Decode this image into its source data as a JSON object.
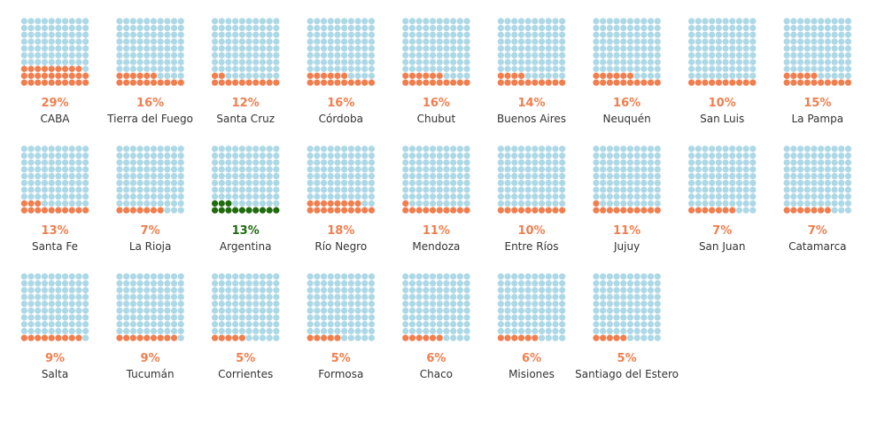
{
  "chart_data": {
    "type": "waffle",
    "title": "",
    "grid": "10x10 dots, 1 dot = 1%",
    "colors": {
      "empty": "#add8e6",
      "filled": "#f07e4e",
      "filled_highlight": "#1f6b0e",
      "label": "#f07e4e",
      "label_highlight": "#1f6b0e"
    },
    "items": [
      {
        "name": "CABA",
        "label": "29%",
        "value": 29,
        "highlight": false
      },
      {
        "name": "Tierra del Fuego",
        "label": "16%",
        "value": 16,
        "highlight": false
      },
      {
        "name": "Santa Cruz",
        "label": "12%",
        "value": 12,
        "highlight": false
      },
      {
        "name": "Córdoba",
        "label": "16%",
        "value": 16,
        "highlight": false
      },
      {
        "name": "Chubut",
        "label": "16%",
        "value": 16,
        "highlight": false
      },
      {
        "name": "Buenos Aires",
        "label": "14%",
        "value": 14,
        "highlight": false
      },
      {
        "name": "Neuquén",
        "label": "16%",
        "value": 16,
        "highlight": false
      },
      {
        "name": "San Luis",
        "label": "10%",
        "value": 10,
        "highlight": false
      },
      {
        "name": "La Pampa",
        "label": "15%",
        "value": 15,
        "highlight": false
      },
      {
        "name": "Santa Fe",
        "label": "13%",
        "value": 13,
        "highlight": false
      },
      {
        "name": "La Rioja",
        "label": "7%",
        "value": 7,
        "highlight": false
      },
      {
        "name": "Argentina",
        "label": "13%",
        "value": 13,
        "highlight": true
      },
      {
        "name": "Río Negro",
        "label": "18%",
        "value": 18,
        "highlight": false
      },
      {
        "name": "Mendoza",
        "label": "11%",
        "value": 11,
        "highlight": false
      },
      {
        "name": "Entre Ríos",
        "label": "10%",
        "value": 10,
        "highlight": false
      },
      {
        "name": "Jujuy",
        "label": "11%",
        "value": 11,
        "highlight": false
      },
      {
        "name": "San Juan",
        "label": "7%",
        "value": 7,
        "highlight": false
      },
      {
        "name": "Catamarca",
        "label": "7%",
        "value": 7,
        "highlight": false
      },
      {
        "name": "Salta",
        "label": "9%",
        "value": 9,
        "highlight": false
      },
      {
        "name": "Tucumán",
        "label": "9%",
        "value": 9,
        "highlight": false
      },
      {
        "name": "Corrientes",
        "label": "5%",
        "value": 5,
        "highlight": false
      },
      {
        "name": "Formosa",
        "label": "5%",
        "value": 5,
        "highlight": false
      },
      {
        "name": "Chaco",
        "label": "6%",
        "value": 6,
        "highlight": false
      },
      {
        "name": "Misiones",
        "label": "6%",
        "value": 6,
        "highlight": false
      },
      {
        "name": "Santiago del Estero",
        "label": "5%",
        "value": 5,
        "highlight": false
      }
    ]
  }
}
